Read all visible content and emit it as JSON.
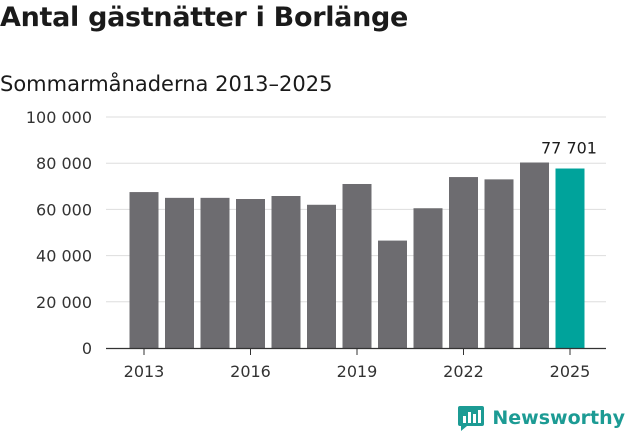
{
  "header": {
    "title": "Antal gästnätter i Borlänge",
    "subtitle": "Sommarmånaderna 2013–2025"
  },
  "brand": {
    "name": "Newsworthy",
    "icon": "newsworthy-logo-icon"
  },
  "colors": {
    "bar": "#6d6c70",
    "highlight": "#00a39b",
    "grid": "#dddddd",
    "axis": "#333333",
    "brand": "#1c9b94"
  },
  "chart_data": {
    "type": "bar",
    "title": "Antal gästnätter i Borlänge",
    "subtitle": "Sommarmånaderna 2013–2025",
    "categories": [
      2013,
      2014,
      2015,
      2016,
      2017,
      2018,
      2019,
      2020,
      2021,
      2022,
      2023,
      2024,
      2025
    ],
    "values": [
      67500,
      65000,
      65000,
      64500,
      65800,
      62000,
      71000,
      46500,
      60500,
      74000,
      73000,
      80300,
      77701
    ],
    "highlight_index": 12,
    "highlight_label": "77 701",
    "ylim": [
      0,
      100000
    ],
    "yticks": [
      0,
      20000,
      40000,
      60000,
      80000,
      100000
    ],
    "ytick_labels": [
      "0",
      "20 000",
      "40 000",
      "60 000",
      "80 000",
      "100 000"
    ],
    "xticks": [
      2013,
      2016,
      2019,
      2022,
      2025
    ],
    "xtick_labels": [
      "2013",
      "2016",
      "2019",
      "2022",
      "2025"
    ],
    "grid": true,
    "legend": "none"
  }
}
